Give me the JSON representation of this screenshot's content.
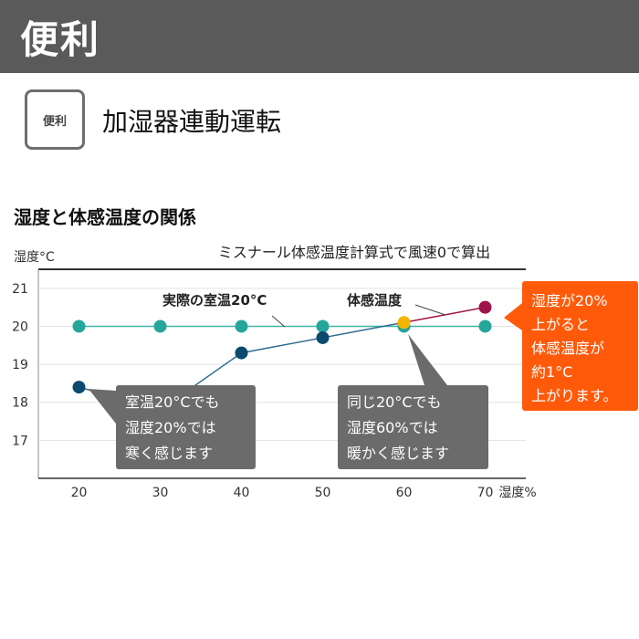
{
  "header": {
    "title": "便利"
  },
  "feature": {
    "badge": "便利",
    "title": "加湿器連動運転"
  },
  "section": {
    "title": "湿度と体感温度の関係"
  },
  "colors": {
    "header_bg": "#5a5a5a",
    "teal": "#26a69a",
    "teal_line": "#3fb5a7",
    "navy": "#0b4a6e",
    "navy_line": "#2d6b8f",
    "orange_point": "#f5b400",
    "crimson": "#a0124a",
    "callout_gray": "#6b6b6b",
    "callout_orange": "#ff5a0a"
  },
  "chart_data": {
    "type": "line",
    "title": "ミスナール体感温度計算式で風速0で算出",
    "ylabel": "湿度°C",
    "xlabel": "湿度%",
    "x": [
      20,
      30,
      40,
      50,
      60,
      70
    ],
    "x_ticks": [
      "20",
      "30",
      "40",
      "50",
      "60",
      "70"
    ],
    "y_ticks": [
      "17",
      "18",
      "19",
      "20",
      "21"
    ],
    "xlim": [
      15,
      75
    ],
    "ylim": [
      16,
      21.5
    ],
    "grid": "horizontal",
    "series": [
      {
        "name": "実際の室温20°C",
        "key": "room",
        "values": [
          20,
          20,
          20,
          20,
          20,
          20
        ]
      },
      {
        "name": "体感温度",
        "key": "feels",
        "values": [
          18.4,
          17.8,
          19.3,
          19.7,
          20.1,
          20.5
        ]
      }
    ],
    "callouts": [
      {
        "key": "c1",
        "lines": [
          "室温20°Cでも",
          "湿度20%では",
          "寒く感じます"
        ]
      },
      {
        "key": "c2",
        "lines": [
          "同じ20°Cでも",
          "湿度60%では",
          "暖かく感じます"
        ]
      },
      {
        "key": "c3",
        "lines": [
          "湿度が20%",
          "上がると",
          "体感温度が",
          "約1°C",
          "上がります。"
        ]
      }
    ]
  }
}
